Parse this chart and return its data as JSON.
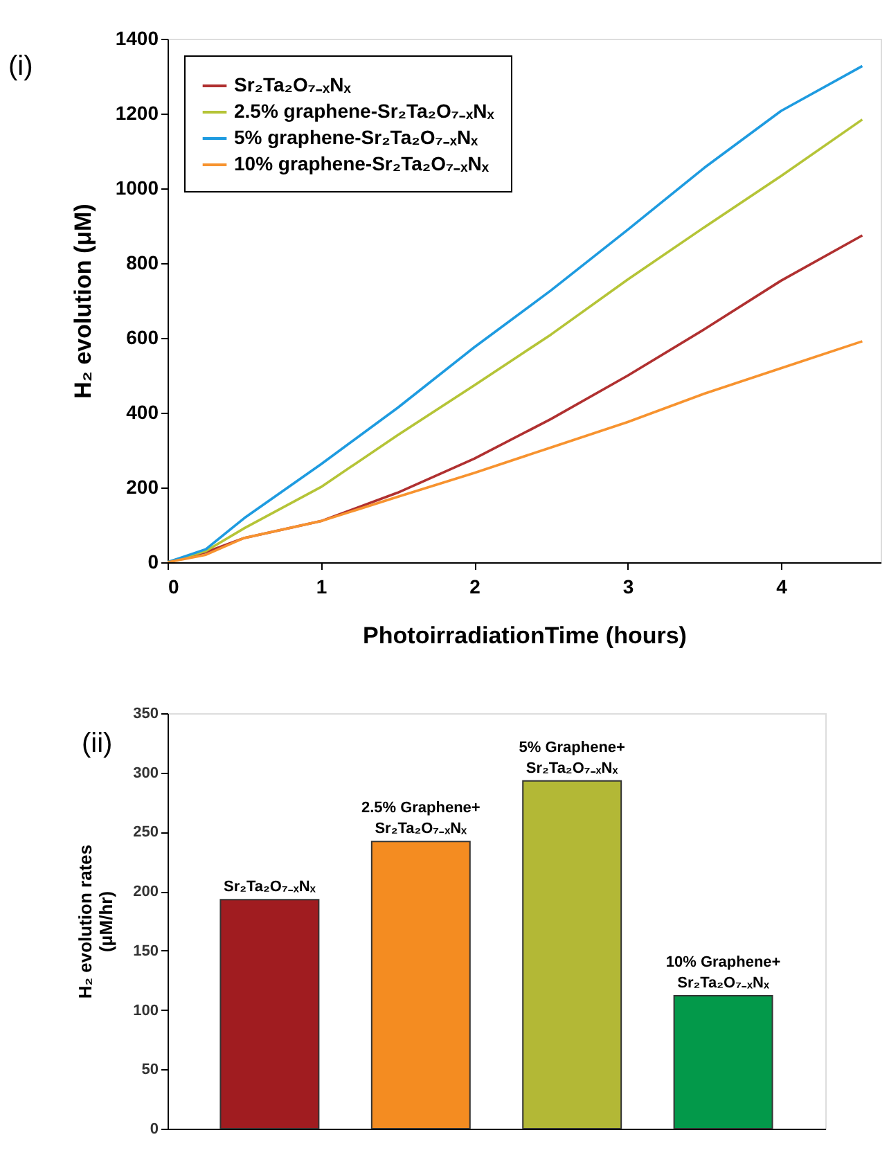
{
  "chart_data": [
    {
      "type": "line",
      "annotations": [
        "(i)"
      ],
      "xlabel": "PhotoirradiationTime (hours)",
      "ylabel": "H₂ evolution (μM)",
      "x": [
        0,
        0.25,
        0.5,
        1,
        1.5,
        2,
        2.5,
        3,
        3.5,
        4,
        4.53
      ],
      "series": [
        {
          "name": "Sr₂Ta₂O₇₋ₓNₓ",
          "color": "#b03030",
          "values": [
            0,
            27,
            65,
            110,
            186,
            277,
            383,
            499,
            623,
            753,
            874
          ]
        },
        {
          "name": "2.5% graphene-Sr₂Ta₂O₇₋ₓNₓ",
          "color": "#b5c437",
          "values": [
            0,
            30,
            91,
            201,
            340,
            473,
            609,
            756,
            896,
            1033,
            1184
          ]
        },
        {
          "name": "5% graphene-Sr₂Ta₂O₇₋ₓNₓ",
          "color": "#1e9be0",
          "values": [
            0,
            35,
            118,
            262,
            413,
            575,
            727,
            889,
            1055,
            1207,
            1327
          ]
        },
        {
          "name": "10% graphene-Sr₂Ta₂O₇₋ₓNₓ",
          "color": "#f7932f",
          "values": [
            0,
            20,
            65,
            110,
            175,
            239,
            307,
            375,
            451,
            519,
            591
          ]
        }
      ],
      "xlim": [
        0,
        4.65
      ],
      "xticks": [
        0,
        1,
        2,
        3,
        4
      ],
      "ylim": [
        0,
        1400
      ],
      "yticks": [
        0,
        200,
        400,
        600,
        800,
        1000,
        1200,
        1400
      ],
      "grid": false,
      "legend": "top left",
      "marker": "none",
      "line_style": "solid"
    },
    {
      "type": "bar",
      "annotations": [
        "(ii)"
      ],
      "ylabel": "H₂ evolution rates\n(μM/hr)",
      "categories": [
        "Sr₂Ta₂O₇₋ₓNₓ",
        "2.5% Graphene+\nSr₂Ta₂O₇₋ₓNₓ",
        "5% Graphene+\nSr₂Ta₂O₇₋ₓNₓ",
        "10% Graphene+\nSr₂Ta₂O₇₋ₓNₓ"
      ],
      "values": [
        193,
        242,
        293,
        112
      ],
      "colors": [
        "#a01c20",
        "#f48c21",
        "#b3b836",
        "#03994a"
      ],
      "ylim": [
        0,
        350
      ],
      "yticks": [
        0,
        50,
        100,
        150,
        200,
        250,
        300,
        350
      ],
      "grid": false,
      "tick_labels": "y"
    }
  ]
}
